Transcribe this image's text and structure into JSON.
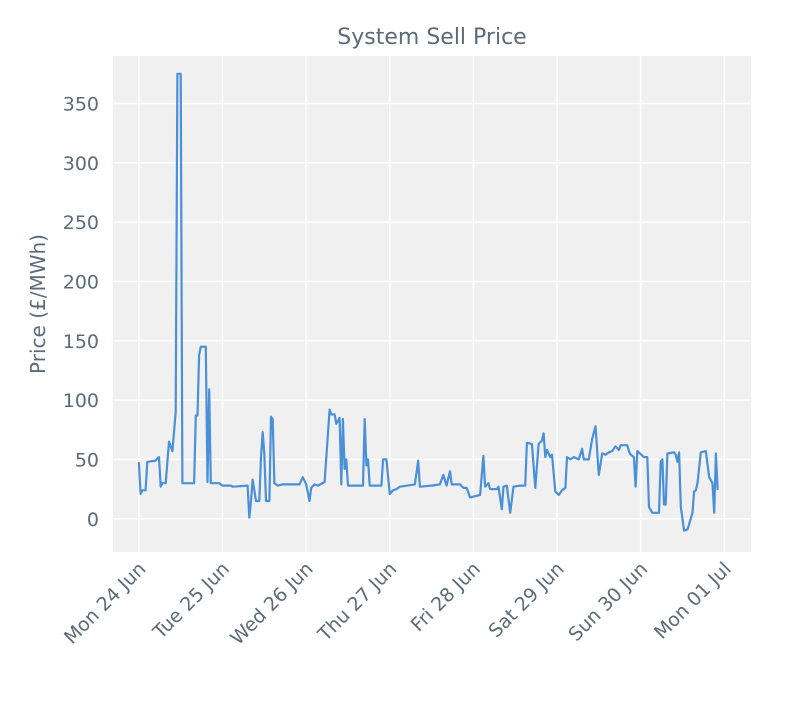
{
  "chart_data": {
    "type": "line",
    "title": "System Sell Price",
    "xlabel": "",
    "ylabel": "Price (£/MWh)",
    "ylim": [
      -28,
      390
    ],
    "xlim_days": [
      -0.31,
      7.32
    ],
    "yticks": [
      0,
      50,
      100,
      150,
      200,
      250,
      300,
      350
    ],
    "xticks": [
      {
        "day": 0,
        "label": "Mon 24 Jun"
      },
      {
        "day": 1,
        "label": "Tue 25 Jun"
      },
      {
        "day": 2,
        "label": "Wed 26 Jun"
      },
      {
        "day": 3,
        "label": "Thu 27 Jun"
      },
      {
        "day": 4,
        "label": "Fri 28 Jun"
      },
      {
        "day": 5,
        "label": "Sat 29 Jun"
      },
      {
        "day": 6,
        "label": "Sun 30 Jun"
      },
      {
        "day": 7,
        "label": "Mon 01 Jul"
      }
    ],
    "grid": true,
    "line_color": "#4a90d9",
    "background_color": "#f0f0f0",
    "series": [
      {
        "name": "System Sell Price",
        "points": [
          [
            0.0,
            47
          ],
          [
            0.02,
            21
          ],
          [
            0.04,
            24
          ],
          [
            0.08,
            24
          ],
          [
            0.1,
            48
          ],
          [
            0.2,
            49
          ],
          [
            0.22,
            51
          ],
          [
            0.24,
            52
          ],
          [
            0.26,
            27
          ],
          [
            0.28,
            30
          ],
          [
            0.32,
            30
          ],
          [
            0.36,
            65
          ],
          [
            0.4,
            57
          ],
          [
            0.44,
            90
          ],
          [
            0.46,
            375
          ],
          [
            0.5,
            375
          ],
          [
            0.52,
            30
          ],
          [
            0.66,
            30
          ],
          [
            0.68,
            87
          ],
          [
            0.7,
            87
          ],
          [
            0.72,
            138
          ],
          [
            0.74,
            145
          ],
          [
            0.8,
            145
          ],
          [
            0.82,
            31
          ],
          [
            0.84,
            109
          ],
          [
            0.86,
            30
          ],
          [
            0.96,
            30
          ],
          [
            1.0,
            28
          ],
          [
            1.1,
            28
          ],
          [
            1.12,
            27
          ],
          [
            1.3,
            28
          ],
          [
            1.32,
            1
          ],
          [
            1.34,
            15
          ],
          [
            1.36,
            33
          ],
          [
            1.4,
            15
          ],
          [
            1.44,
            15
          ],
          [
            1.46,
            52
          ],
          [
            1.48,
            73
          ],
          [
            1.5,
            55
          ],
          [
            1.52,
            15
          ],
          [
            1.56,
            15
          ],
          [
            1.58,
            86
          ],
          [
            1.6,
            84
          ],
          [
            1.62,
            30
          ],
          [
            1.66,
            28
          ],
          [
            1.72,
            29
          ],
          [
            1.92,
            29
          ],
          [
            1.96,
            35
          ],
          [
            2.0,
            29
          ],
          [
            2.04,
            15
          ],
          [
            2.06,
            26
          ],
          [
            2.1,
            29
          ],
          [
            2.14,
            28
          ],
          [
            2.22,
            31
          ],
          [
            2.28,
            92
          ],
          [
            2.3,
            88
          ],
          [
            2.34,
            88
          ],
          [
            2.36,
            80
          ],
          [
            2.4,
            85
          ],
          [
            2.42,
            29
          ],
          [
            2.44,
            84
          ],
          [
            2.46,
            42
          ],
          [
            2.48,
            50
          ],
          [
            2.5,
            28
          ],
          [
            2.68,
            28
          ],
          [
            2.7,
            84
          ],
          [
            2.72,
            45
          ],
          [
            2.74,
            50
          ],
          [
            2.76,
            28
          ],
          [
            2.9,
            28
          ],
          [
            2.92,
            50
          ],
          [
            2.96,
            50
          ],
          [
            3.0,
            21
          ],
          [
            3.04,
            24
          ],
          [
            3.08,
            25
          ],
          [
            3.12,
            27
          ],
          [
            3.3,
            29
          ],
          [
            3.34,
            49
          ],
          [
            3.36,
            27
          ],
          [
            3.5,
            28
          ],
          [
            3.6,
            29
          ],
          [
            3.64,
            37
          ],
          [
            3.68,
            28
          ],
          [
            3.72,
            40
          ],
          [
            3.74,
            29
          ],
          [
            3.84,
            29
          ],
          [
            3.88,
            26
          ],
          [
            3.92,
            26
          ],
          [
            3.96,
            18
          ],
          [
            4.08,
            20
          ],
          [
            4.12,
            53
          ],
          [
            4.14,
            27
          ],
          [
            4.18,
            30
          ],
          [
            4.2,
            25
          ],
          [
            4.28,
            25
          ],
          [
            4.3,
            27
          ],
          [
            4.34,
            8
          ],
          [
            4.36,
            27
          ],
          [
            4.4,
            28
          ],
          [
            4.44,
            5
          ],
          [
            4.48,
            27
          ],
          [
            4.56,
            28
          ],
          [
            4.62,
            28
          ],
          [
            4.64,
            64
          ],
          [
            4.7,
            63
          ],
          [
            4.74,
            26
          ],
          [
            4.78,
            63
          ],
          [
            4.82,
            66
          ],
          [
            4.84,
            72
          ],
          [
            4.86,
            52
          ],
          [
            4.88,
            58
          ],
          [
            4.92,
            52
          ],
          [
            4.94,
            54
          ],
          [
            4.98,
            23
          ],
          [
            5.02,
            20
          ],
          [
            5.06,
            24
          ],
          [
            5.1,
            26
          ],
          [
            5.12,
            52
          ],
          [
            5.16,
            50
          ],
          [
            5.2,
            52
          ],
          [
            5.26,
            50
          ],
          [
            5.3,
            59
          ],
          [
            5.32,
            50
          ],
          [
            5.38,
            50
          ],
          [
            5.42,
            67
          ],
          [
            5.46,
            78
          ],
          [
            5.5,
            37
          ],
          [
            5.54,
            55
          ],
          [
            5.58,
            54
          ],
          [
            5.62,
            56
          ],
          [
            5.66,
            57
          ],
          [
            5.7,
            61
          ],
          [
            5.74,
            58
          ],
          [
            5.76,
            62
          ],
          [
            5.84,
            62
          ],
          [
            5.86,
            57
          ],
          [
            5.88,
            54
          ],
          [
            5.92,
            52
          ],
          [
            5.94,
            27
          ],
          [
            5.96,
            57
          ],
          [
            6.04,
            52
          ],
          [
            6.08,
            52
          ],
          [
            6.1,
            10
          ],
          [
            6.14,
            5
          ],
          [
            6.22,
            5
          ],
          [
            6.24,
            48
          ],
          [
            6.26,
            50
          ],
          [
            6.28,
            12
          ],
          [
            6.3,
            12
          ],
          [
            6.32,
            55
          ],
          [
            6.4,
            56
          ],
          [
            6.42,
            54
          ],
          [
            6.44,
            48
          ],
          [
            6.46,
            56
          ],
          [
            6.48,
            10
          ],
          [
            6.52,
            -10
          ],
          [
            6.56,
            -9
          ],
          [
            6.62,
            5
          ],
          [
            6.64,
            23
          ],
          [
            6.66,
            24
          ],
          [
            6.68,
            30
          ],
          [
            6.72,
            56
          ],
          [
            6.78,
            57
          ],
          [
            6.82,
            35
          ],
          [
            6.86,
            30
          ],
          [
            6.88,
            5
          ],
          [
            6.9,
            55
          ],
          [
            6.92,
            25
          ]
        ]
      }
    ]
  }
}
